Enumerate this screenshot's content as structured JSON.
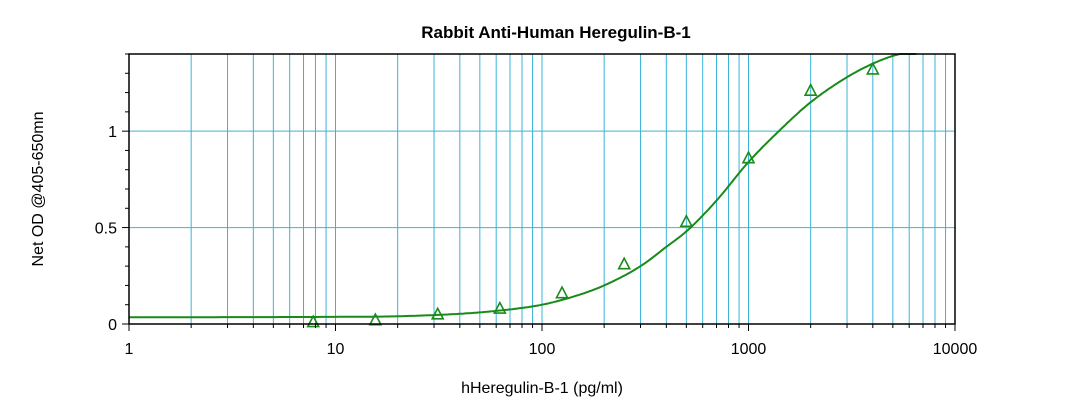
{
  "chart_data": {
    "type": "line",
    "title": "Rabbit Anti-Human Heregulin-B-1",
    "xlabel": "hHeregulin-B-1 (pg/ml)",
    "ylabel": "Net OD @405-650mn",
    "x_scale": "log",
    "xlim": [
      1,
      10000
    ],
    "ylim": [
      0,
      1.4
    ],
    "x_ticks": [
      "1",
      "10",
      "100",
      "1000",
      "10000"
    ],
    "y_ticks": [
      "0",
      "0.5",
      "1"
    ],
    "y_tick_values": [
      0,
      0.5,
      1
    ],
    "grid": true,
    "colors": {
      "grid": "#3ab4d8",
      "curve": "#1a8a1a",
      "marker": "#1a8a1a",
      "frame": "#000000"
    },
    "series": [
      {
        "marker": "triangle",
        "x": [
          7.8,
          15.6,
          31.25,
          62.5,
          125,
          250,
          500,
          1000,
          2000,
          4000
        ],
        "y": [
          0.01,
          0.02,
          0.05,
          0.08,
          0.16,
          0.31,
          0.53,
          0.86,
          1.21,
          1.32
        ]
      }
    ],
    "fit": {
      "x": [
        1,
        5,
        10,
        20,
        40,
        60,
        100,
        150,
        200,
        300,
        400,
        500,
        700,
        1000,
        1500,
        2000,
        3000,
        4000,
        5000,
        6500
      ],
      "y": [
        0.035,
        0.036,
        0.037,
        0.04,
        0.053,
        0.068,
        0.1,
        0.15,
        0.2,
        0.3,
        0.4,
        0.48,
        0.64,
        0.84,
        1.03,
        1.15,
        1.28,
        1.35,
        1.39,
        1.42
      ]
    }
  }
}
